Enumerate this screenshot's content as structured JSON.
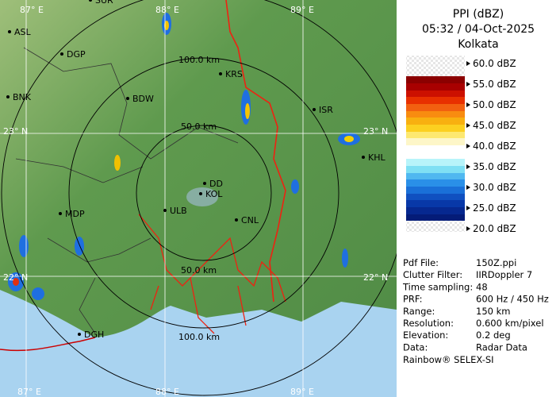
{
  "header": {
    "title": "PPI (dBZ)",
    "time": "05:32 / 04-Oct-2025",
    "station": "Kolkata"
  },
  "legend": [
    "60.0 dBZ",
    "55.0 dBZ",
    "50.0 dBZ",
    "45.0 dBZ",
    "40.0 dBZ",
    "35.0 dBZ",
    "30.0 dBZ",
    "25.0 dBZ",
    "20.0 dBZ"
  ],
  "info": [
    [
      "Pdf File:",
      "150Z.ppi"
    ],
    [
      "Clutter Filter:",
      "IIRDoppler 7"
    ],
    [
      "Time sampling:",
      "48"
    ],
    [
      "PRF:",
      "600 Hz / 450 Hz"
    ],
    [
      "Range:",
      "150 km"
    ],
    [
      "Resolution:",
      "0.600 km/pixel"
    ],
    [
      "Elevation:",
      "0.2 deg"
    ],
    [
      "Data:",
      "Radar Data"
    ]
  ],
  "footer": "Rainbow® SELEX-SI",
  "map": {
    "cities": [
      "SUR",
      "ASL",
      "DGP",
      "BNK",
      "BDW",
      "KRS",
      "ISR",
      "KHL",
      "MDP",
      "DD",
      "KOL",
      "ULB",
      "CNL",
      "DGH"
    ],
    "rings": [
      "100.0 km",
      "50.0 km",
      "50.0 km",
      "100.0 km"
    ],
    "grid": [
      "87° E",
      "88° E",
      "89° E",
      "23° N",
      "23° N",
      "22° N",
      "22° N",
      "87° E",
      "88° E",
      "89° E"
    ]
  }
}
